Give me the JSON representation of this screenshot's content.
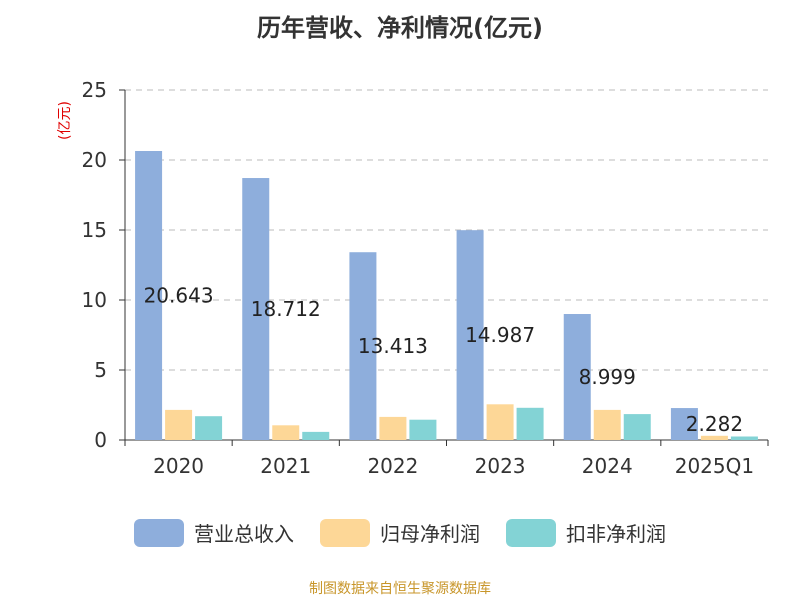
{
  "title": "历年营收、净利情况(亿元)",
  "unit_label": "(亿元)",
  "source": "制图数据来自恒生聚源数据库",
  "colors": {
    "revenue": "#8eaedc",
    "parent_profit": "#fdd797",
    "deducted_profit": "#83d3d5",
    "unit_text": "#e00000",
    "source_text": "#c8962a",
    "axis": "#333333",
    "grid": "#bbbbbb"
  },
  "chart_data": {
    "type": "bar",
    "title": "历年营收、净利情况(亿元)",
    "xlabel": "",
    "ylabel": "(亿元)",
    "ylim": [
      0,
      25
    ],
    "yticks": [
      0,
      5,
      10,
      15,
      20,
      25
    ],
    "grid": true,
    "legend_position": "bottom",
    "categories": [
      "2020",
      "2021",
      "2022",
      "2023",
      "2024",
      "2025Q1"
    ],
    "series": [
      {
        "name": "营业总收入",
        "values": [
          20.643,
          18.712,
          13.413,
          14.987,
          8.999,
          2.282
        ],
        "data_labels": [
          "20.643",
          "18.712",
          "13.413",
          "14.987",
          "8.999",
          "2.282"
        ]
      },
      {
        "name": "归母净利润",
        "values": [
          2.15,
          1.05,
          1.65,
          2.55,
          2.15,
          0.3
        ]
      },
      {
        "name": "扣非净利润",
        "values": [
          1.7,
          0.58,
          1.45,
          2.3,
          1.85,
          0.25
        ]
      }
    ]
  }
}
